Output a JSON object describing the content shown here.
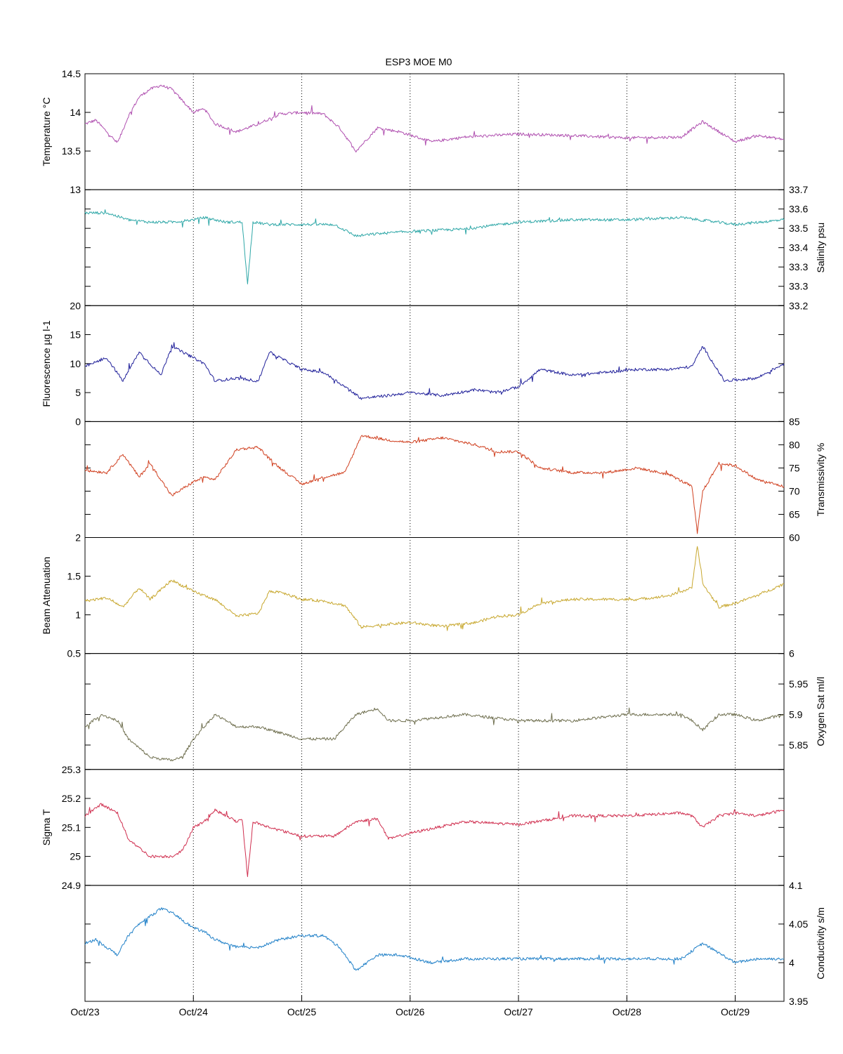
{
  "chart_data": {
    "type": "line",
    "title": "ESP3 MOE   M0",
    "x_axis": {
      "tick_labels": [
        "Oct/23",
        "Oct/24",
        "Oct/25",
        "Oct/26",
        "Oct/27",
        "Oct/28",
        "Oct/29"
      ],
      "range_days": [
        0,
        6.45
      ]
    },
    "grid": "vertical dotted at day ticks",
    "panels": [
      {
        "name": "Temperature °C",
        "side": "left",
        "color": "#b050b0",
        "ylim": [
          13,
          14.5
        ],
        "ticks": [
          "13",
          "13.5",
          "14",
          "14.5"
        ],
        "x": [
          0,
          0.1,
          0.2,
          0.3,
          0.4,
          0.5,
          0.6,
          0.7,
          0.8,
          0.9,
          1.0,
          1.1,
          1.2,
          1.4,
          1.6,
          1.8,
          2.0,
          2.2,
          2.35,
          2.5,
          2.7,
          2.9,
          3.2,
          3.5,
          4.0,
          4.5,
          5.0,
          5.5,
          5.7,
          6.0,
          6.2,
          6.45
        ],
        "y": [
          13.85,
          13.9,
          13.75,
          13.6,
          13.95,
          14.2,
          14.3,
          14.35,
          14.3,
          14.15,
          14.0,
          14.05,
          13.85,
          13.75,
          13.85,
          13.98,
          14.0,
          13.98,
          13.8,
          13.5,
          13.8,
          13.75,
          13.62,
          13.68,
          13.72,
          13.7,
          13.67,
          13.68,
          13.88,
          13.62,
          13.7,
          13.65
        ]
      },
      {
        "name": "Salinity psu",
        "side": "right",
        "color": "#30a8a8",
        "ylim": [
          33.2,
          33.7
        ],
        "ticks": [
          "33.2",
          "33.3",
          "33.3",
          "33.4",
          "33.5",
          "33.6",
          "33.7"
        ],
        "x": [
          0,
          0.2,
          0.4,
          0.6,
          0.8,
          1.0,
          1.1,
          1.3,
          1.45,
          1.5,
          1.55,
          1.7,
          2.0,
          2.3,
          2.5,
          2.7,
          3.0,
          3.5,
          4.0,
          4.5,
          5.0,
          5.5,
          6.0,
          6.45
        ],
        "y": [
          33.6,
          33.6,
          33.57,
          33.56,
          33.56,
          33.57,
          33.58,
          33.56,
          33.56,
          33.29,
          33.56,
          33.55,
          33.55,
          33.55,
          33.5,
          33.51,
          33.52,
          33.53,
          33.56,
          33.57,
          33.57,
          33.58,
          33.55,
          33.57
        ]
      },
      {
        "name": "Fluorescence µg l-1",
        "side": "left",
        "color": "#20209a",
        "ylim": [
          0,
          20
        ],
        "ticks": [
          "0",
          "5",
          "10",
          "15",
          "20"
        ],
        "x": [
          0,
          0.2,
          0.35,
          0.5,
          0.7,
          0.8,
          1.0,
          1.1,
          1.2,
          1.4,
          1.6,
          1.7,
          1.8,
          2.0,
          2.2,
          2.4,
          2.55,
          2.8,
          3.0,
          3.3,
          3.6,
          3.8,
          4.0,
          4.2,
          4.5,
          4.8,
          5.1,
          5.4,
          5.6,
          5.7,
          5.9,
          6.2,
          6.45
        ],
        "y": [
          9.5,
          11,
          7,
          12,
          8,
          13,
          11,
          10,
          7,
          7.5,
          7,
          12,
          11,
          9,
          8.5,
          6,
          4,
          4.5,
          5,
          4.5,
          5.5,
          5,
          6,
          9,
          8,
          8.5,
          9,
          9,
          9.5,
          13,
          7,
          7.5,
          10
        ]
      },
      {
        "name": "Transmissivity %",
        "side": "right",
        "color": "#d04020",
        "ylim": [
          60,
          85
        ],
        "ticks": [
          "60",
          "65",
          "70",
          "75",
          "80",
          "85"
        ],
        "x": [
          0,
          0.2,
          0.35,
          0.5,
          0.6,
          0.8,
          1.0,
          1.1,
          1.2,
          1.4,
          1.6,
          1.7,
          1.8,
          2.0,
          2.2,
          2.4,
          2.55,
          2.8,
          3.0,
          3.3,
          3.6,
          3.8,
          4.0,
          4.2,
          4.5,
          4.8,
          5.1,
          5.4,
          5.6,
          5.65,
          5.7,
          5.85,
          6.0,
          6.2,
          6.45
        ],
        "y": [
          74.5,
          74,
          78,
          73,
          76,
          69,
          72,
          73,
          72.5,
          79,
          79.5,
          77,
          75,
          71.5,
          73,
          74,
          82,
          81,
          80.5,
          81.5,
          80,
          78.5,
          78.5,
          75,
          74,
          74,
          75,
          73.5,
          71,
          61,
          70,
          76,
          75.5,
          72.5,
          71
        ]
      },
      {
        "name": "Beam Attenuation",
        "side": "left",
        "color": "#c8a830",
        "ylim": [
          0.5,
          2
        ],
        "ticks": [
          "0.5",
          "1",
          "1.5",
          "2"
        ],
        "x": [
          0,
          0.2,
          0.35,
          0.5,
          0.6,
          0.8,
          1.0,
          1.1,
          1.2,
          1.4,
          1.6,
          1.7,
          1.8,
          2.0,
          2.2,
          2.4,
          2.55,
          2.8,
          3.0,
          3.3,
          3.6,
          3.8,
          4.0,
          4.2,
          4.5,
          4.8,
          5.1,
          5.4,
          5.6,
          5.65,
          5.7,
          5.85,
          6.0,
          6.2,
          6.45
        ],
        "y": [
          1.18,
          1.22,
          1.1,
          1.35,
          1.2,
          1.45,
          1.3,
          1.25,
          1.2,
          0.98,
          1.02,
          1.3,
          1.3,
          1.2,
          1.18,
          1.12,
          0.84,
          0.88,
          0.9,
          0.85,
          0.9,
          0.98,
          1.0,
          1.15,
          1.2,
          1.2,
          1.2,
          1.25,
          1.35,
          1.9,
          1.4,
          1.1,
          1.15,
          1.25,
          1.4
        ]
      },
      {
        "name": "Oxygen Sat ml/l",
        "side": "right",
        "color": "#707050",
        "ylim": [
          5.81,
          6.0
        ],
        "ticks": [
          "5.85",
          "5.9",
          "5.95",
          "6"
        ],
        "x": [
          0,
          0.15,
          0.3,
          0.4,
          0.6,
          0.8,
          0.9,
          1.0,
          1.1,
          1.2,
          1.4,
          1.6,
          1.8,
          2.0,
          2.3,
          2.5,
          2.7,
          2.8,
          3.0,
          3.5,
          4.0,
          4.5,
          5.0,
          5.5,
          5.6,
          5.7,
          5.85,
          6.0,
          6.2,
          6.45
        ],
        "y": [
          5.88,
          5.9,
          5.89,
          5.86,
          5.83,
          5.825,
          5.83,
          5.86,
          5.88,
          5.9,
          5.88,
          5.88,
          5.87,
          5.86,
          5.86,
          5.9,
          5.91,
          5.89,
          5.89,
          5.9,
          5.89,
          5.89,
          5.9,
          5.9,
          5.89,
          5.875,
          5.9,
          5.9,
          5.89,
          5.9
        ]
      },
      {
        "name": "Sigma T",
        "side": "left",
        "color": "#d03050",
        "ylim": [
          24.9,
          25.3
        ],
        "ticks": [
          "24.9",
          "25",
          "25.1",
          "25.2",
          "25.3"
        ],
        "x": [
          0,
          0.15,
          0.3,
          0.4,
          0.6,
          0.8,
          0.9,
          1.0,
          1.1,
          1.2,
          1.4,
          1.45,
          1.5,
          1.55,
          1.7,
          2.0,
          2.3,
          2.5,
          2.7,
          2.8,
          3.0,
          3.5,
          4.0,
          4.5,
          5.0,
          5.5,
          5.6,
          5.7,
          5.85,
          6.0,
          6.2,
          6.45
        ],
        "y": [
          25.14,
          25.18,
          25.15,
          25.06,
          25.0,
          25.0,
          25.02,
          25.1,
          25.12,
          25.16,
          25.12,
          25.13,
          24.93,
          25.12,
          25.1,
          25.07,
          25.07,
          25.12,
          25.13,
          25.06,
          25.08,
          25.12,
          25.11,
          25.14,
          25.14,
          25.15,
          25.14,
          25.1,
          25.14,
          25.15,
          25.14,
          25.16
        ]
      },
      {
        "name": "Conductivity s/m",
        "side": "right",
        "color": "#2080c8",
        "ylim": [
          3.95,
          4.1
        ],
        "ticks": [
          "3.95",
          "4",
          "4.05",
          "4.1"
        ],
        "x": [
          0,
          0.1,
          0.2,
          0.3,
          0.4,
          0.5,
          0.6,
          0.7,
          0.8,
          0.9,
          1.0,
          1.1,
          1.2,
          1.4,
          1.6,
          1.8,
          2.0,
          2.2,
          2.35,
          2.5,
          2.7,
          2.9,
          3.2,
          3.5,
          4.0,
          4.5,
          5.0,
          5.5,
          5.7,
          6.0,
          6.2,
          6.45
        ],
        "y": [
          4.025,
          4.03,
          4.02,
          4.01,
          4.035,
          4.05,
          4.06,
          4.07,
          4.065,
          4.055,
          4.045,
          4.04,
          4.03,
          4.02,
          4.02,
          4.03,
          4.035,
          4.035,
          4.02,
          3.99,
          4.01,
          4.01,
          4.0,
          4.005,
          4.005,
          4.005,
          4.005,
          4.005,
          4.025,
          4.0,
          4.005,
          4.005
        ]
      }
    ]
  }
}
